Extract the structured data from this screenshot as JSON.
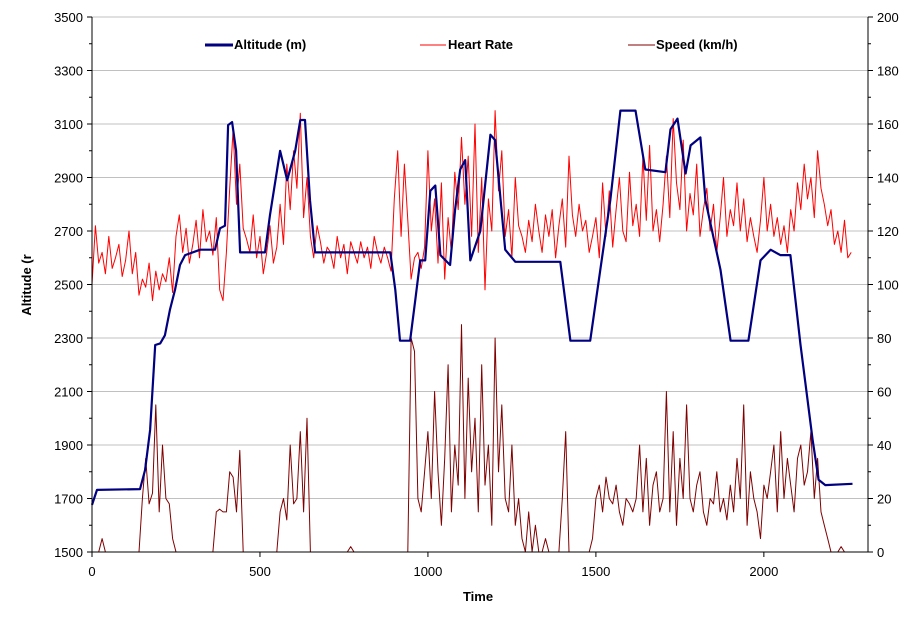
{
  "chart_data": {
    "type": "line",
    "title": "",
    "xlabel": "Time",
    "ylabel": "Altitude (r",
    "y2label": "",
    "xlim": [
      0,
      2310
    ],
    "ylim": [
      1500,
      3500
    ],
    "y2lim": [
      0,
      200
    ],
    "xticks": [
      "0",
      "500",
      "1000",
      "1500",
      "2000"
    ],
    "xtick_values": [
      0,
      500,
      1000,
      1500,
      2000
    ],
    "yticks": [
      "1500",
      "1700",
      "1900",
      "2100",
      "2300",
      "2500",
      "2700",
      "2900",
      "3100",
      "3300",
      "3500"
    ],
    "y2ticks": [
      "0",
      "20",
      "40",
      "60",
      "80",
      "100",
      "120",
      "140",
      "160",
      "180",
      "200"
    ],
    "grid": "horizontal",
    "legend_position": "top",
    "colors": {
      "altitude": "#000080",
      "heart_rate": "#ff0000",
      "speed": "#800000",
      "grid": "#c0c0c0"
    },
    "series": [
      {
        "name": "Altitude (m)",
        "axis": "left",
        "x": [
          0,
          15,
          143,
          158,
          173,
          188,
          203,
          217,
          232,
          247,
          262,
          277,
          322,
          366,
          381,
          396,
          405,
          417,
          429,
          441,
          515,
          530,
          560,
          581,
          605,
          620,
          634,
          649,
          664,
          888,
          903,
          917,
          947,
          962,
          977,
          992,
          1007,
          1022,
          1037,
          1066,
          1081,
          1096,
          1111,
          1126,
          1156,
          1186,
          1200,
          1230,
          1260,
          1394,
          1424,
          1483,
          1513,
          1543,
          1573,
          1618,
          1647,
          1707,
          1722,
          1743,
          1767,
          1782,
          1811,
          1826,
          1871,
          1901,
          1954,
          1990,
          2020,
          2049,
          2079,
          2109,
          2145,
          2163,
          2183,
          2264
        ],
        "values": [
          1676,
          1732,
          1735,
          1807,
          1956,
          2274,
          2280,
          2310,
          2405,
          2480,
          2573,
          2610,
          2630,
          2630,
          2710,
          2720,
          3096,
          3107,
          3000,
          2620,
          2620,
          2760,
          3000,
          2890,
          3000,
          3115,
          3115,
          2815,
          2620,
          2620,
          2480,
          2290,
          2290,
          2440,
          2590,
          2590,
          2850,
          2870,
          2610,
          2573,
          2780,
          2930,
          2965,
          2590,
          2700,
          3060,
          3040,
          2630,
          2585,
          2585,
          2290,
          2290,
          2555,
          2815,
          3150,
          3150,
          2930,
          2920,
          3080,
          3120,
          2915,
          3020,
          3050,
          2815,
          2555,
          2290,
          2290,
          2590,
          2630,
          2610,
          2610,
          2275,
          1920,
          1770,
          1750,
          1755
        ]
      },
      {
        "name": "Heart Rate",
        "axis": "right",
        "x_start": 0,
        "x_step": 10,
        "values": [
          100,
          122,
          108,
          112,
          104,
          118,
          106,
          110,
          115,
          103,
          109,
          120,
          104,
          112,
          96,
          102,
          99,
          108,
          94,
          105,
          98,
          104,
          101,
          110,
          97,
          118,
          126,
          112,
          121,
          108,
          115,
          124,
          110,
          128,
          116,
          120,
          111,
          125,
          98,
          94,
          112,
          136,
          158,
          130,
          145,
          121,
          117,
          112,
          126,
          110,
          118,
          104,
          112,
          122,
          108,
          114,
          130,
          115,
          145,
          128,
          150,
          136,
          164,
          125,
          140,
          118,
          110,
          122,
          116,
          108,
          114,
          112,
          106,
          118,
          110,
          115,
          104,
          116,
          112,
          108,
          116,
          110,
          114,
          106,
          118,
          112,
          108,
          114,
          110,
          105,
          132,
          150,
          118,
          145,
          124,
          102,
          110,
          112,
          106,
          114,
          150,
          120,
          132,
          108,
          138,
          102,
          125,
          112,
          142,
          128,
          155,
          130,
          148,
          118,
          160,
          112,
          140,
          98,
          132,
          120,
          165,
          135,
          150,
          118,
          128,
          110,
          140,
          122,
          118,
          112,
          124,
          116,
          130,
          120,
          112,
          126,
          118,
          128,
          110,
          122,
          132,
          114,
          148,
          126,
          118,
          130,
          120,
          124,
          112,
          118,
          125,
          110,
          138,
          118,
          135,
          114,
          128,
          140,
          120,
          116,
          142,
          122,
          130,
          118,
          148,
          124,
          152,
          120,
          128,
          116,
          130,
          148,
          125,
          162,
          138,
          128,
          154,
          120,
          134,
          126,
          145,
          118,
          128,
          136,
          120,
          130,
          112,
          125,
          140,
          118,
          128,
          122,
          138,
          120,
          132,
          116,
          125,
          118,
          112,
          124,
          140,
          120,
          130,
          118,
          125,
          115,
          122,
          112,
          128,
          120,
          138,
          128,
          145,
          132,
          140,
          125,
          150,
          136,
          130,
          122,
          128,
          115,
          120,
          112,
          124,
          110,
          112
        ]
      },
      {
        "name": "Speed (km/h)",
        "axis": "right",
        "x_start": 0,
        "x_step": 10,
        "values": [
          0,
          0,
          0,
          5,
          0,
          0,
          0,
          0,
          0,
          0,
          0,
          0,
          0,
          0,
          0,
          20,
          35,
          18,
          22,
          55,
          15,
          40,
          20,
          18,
          5,
          0,
          0,
          0,
          0,
          0,
          0,
          0,
          0,
          0,
          0,
          0,
          0,
          15,
          16,
          15,
          15,
          30,
          28,
          15,
          38,
          0,
          0,
          0,
          0,
          0,
          0,
          0,
          0,
          0,
          0,
          0,
          15,
          20,
          12,
          40,
          18,
          20,
          45,
          15,
          50,
          0,
          0,
          0,
          0,
          0,
          0,
          0,
          0,
          0,
          0,
          0,
          0,
          2,
          0,
          0,
          0,
          0,
          0,
          0,
          0,
          0,
          0,
          0,
          0,
          0,
          0,
          0,
          0,
          0,
          0,
          80,
          75,
          20,
          15,
          30,
          45,
          20,
          60,
          30,
          10,
          35,
          70,
          15,
          40,
          25,
          85,
          20,
          65,
          30,
          50,
          15,
          70,
          25,
          40,
          10,
          80,
          30,
          55,
          20,
          15,
          40,
          10,
          20,
          5,
          0,
          15,
          0,
          10,
          0,
          0,
          5,
          0,
          0,
          0,
          0,
          20,
          45,
          0,
          0,
          0,
          0,
          0,
          0,
          0,
          5,
          20,
          25,
          15,
          28,
          20,
          18,
          25,
          15,
          10,
          20,
          18,
          15,
          20,
          40,
          15,
          35,
          10,
          25,
          30,
          15,
          20,
          60,
          15,
          45,
          10,
          35,
          20,
          55,
          20,
          15,
          25,
          30,
          15,
          10,
          20,
          18,
          30,
          15,
          20,
          12,
          25,
          15,
          35,
          20,
          55,
          10,
          30,
          20,
          15,
          5,
          25,
          20,
          30,
          40,
          15,
          45,
          20,
          35,
          25,
          15,
          35,
          40,
          25,
          30,
          45,
          20,
          35,
          15,
          10,
          5,
          0,
          0,
          0,
          2,
          0,
          0,
          0
        ]
      }
    ]
  }
}
